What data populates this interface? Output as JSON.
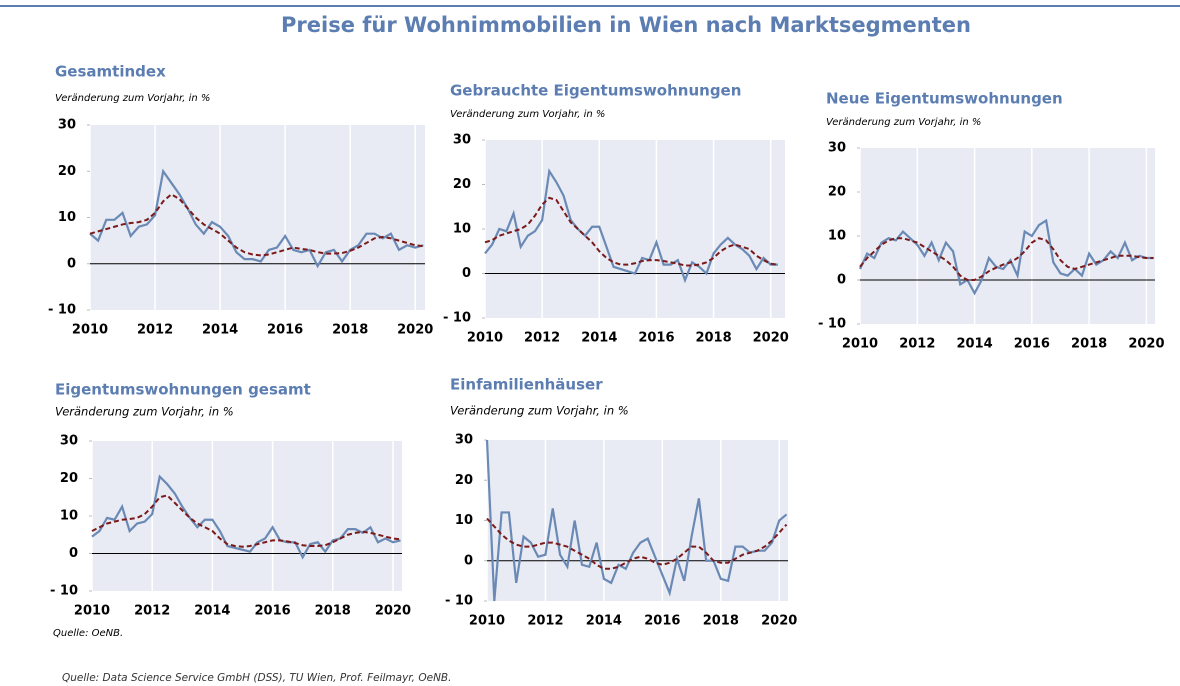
{
  "title": "Preise für Wohnimmobilien in Wien nach Marktsegmenten",
  "source": "Quelle: Data Science Service GmbH (DSS), TU Wien, Prof. Feilmayr, OeNB.",
  "chart_data": [
    {
      "type": "line",
      "title": "Gesamtindex",
      "subtitle": "Veränderung zum Vorjahr, in %",
      "x": [
        2010,
        2010.25,
        2010.5,
        2010.75,
        2011,
        2011.25,
        2011.5,
        2011.75,
        2012,
        2012.25,
        2012.5,
        2012.75,
        2013,
        2013.25,
        2013.5,
        2013.75,
        2014,
        2014.25,
        2014.5,
        2014.75,
        2015,
        2015.25,
        2015.5,
        2015.75,
        2016,
        2016.25,
        2016.5,
        2016.75,
        2017,
        2017.25,
        2017.5,
        2017.75,
        2018,
        2018.25,
        2018.5,
        2018.75,
        2019,
        2019.25,
        2019.5,
        2019.75,
        2020,
        2020.25
      ],
      "series": [
        {
          "color": "#6a8ab5",
          "style": "solid",
          "values": [
            6.5,
            5,
            9.5,
            9.5,
            11,
            6,
            8,
            8.5,
            10.5,
            20,
            17.5,
            15,
            12,
            8.5,
            6.5,
            9,
            8,
            6,
            2.5,
            1,
            1,
            0.5,
            3,
            3.5,
            6,
            3,
            2.5,
            3,
            -0.5,
            2.5,
            3,
            0.5,
            3,
            4,
            6.5,
            6.5,
            5.5,
            6.5,
            3,
            4,
            3.5,
            4
          ]
        },
        {
          "color": "#7b1a1a",
          "style": "dashed",
          "values": [
            6.5,
            7,
            7.5,
            8,
            8.5,
            8.8,
            9,
            9.5,
            11,
            13.5,
            15,
            14,
            12,
            10,
            8.5,
            7.5,
            6.5,
            5,
            3.5,
            2.5,
            2,
            1.8,
            2,
            2.5,
            3,
            3.5,
            3.2,
            3,
            2.5,
            2.2,
            2.2,
            2.3,
            2.8,
            3.5,
            4.5,
            5.5,
            5.8,
            5.5,
            5,
            4.5,
            4,
            3.8
          ]
        }
      ],
      "xlim": [
        2010,
        2020.3
      ],
      "xticks": [
        2010,
        2012,
        2014,
        2016,
        2018,
        2020
      ],
      "ylim": [
        -10,
        30
      ],
      "yticks": [
        {
          "value": -10,
          "label": "- 10"
        },
        0,
        10,
        20,
        30
      ],
      "grid": true
    },
    {
      "type": "line",
      "title": "Gebrauchte Eigentumswohnungen",
      "subtitle": "Veränderung zum Vorjahr, in %",
      "x": [
        2010,
        2010.25,
        2010.5,
        2010.75,
        2011,
        2011.25,
        2011.5,
        2011.75,
        2012,
        2012.25,
        2012.5,
        2012.75,
        2013,
        2013.25,
        2013.5,
        2013.75,
        2014,
        2014.25,
        2014.5,
        2014.75,
        2015,
        2015.25,
        2015.5,
        2015.75,
        2016,
        2016.25,
        2016.5,
        2016.75,
        2017,
        2017.25,
        2017.5,
        2017.75,
        2018,
        2018.25,
        2018.5,
        2018.75,
        2019,
        2019.25,
        2019.5,
        2019.75,
        2020,
        2020.25
      ],
      "series": [
        {
          "color": "#6a8ab5",
          "style": "solid",
          "values": [
            4.5,
            6.5,
            10,
            9.5,
            13.5,
            6,
            8.5,
            9.5,
            12,
            23,
            20.5,
            17.5,
            12,
            10,
            8.5,
            10.5,
            10.5,
            6,
            1.5,
            1,
            0.5,
            0,
            3.5,
            3,
            7,
            2,
            2,
            3,
            -1.5,
            2.5,
            1.5,
            0,
            4.5,
            6.5,
            8,
            6.5,
            5.5,
            4,
            1,
            3.5,
            2,
            2
          ]
        },
        {
          "color": "#7b1a1a",
          "style": "dashed",
          "values": [
            7,
            7.5,
            8.5,
            9,
            9.5,
            10,
            11,
            13,
            15.5,
            17,
            16.5,
            14,
            11.5,
            10,
            8.5,
            7,
            5,
            3.5,
            2.5,
            2,
            2,
            2.3,
            2.8,
            3,
            3,
            2.8,
            2.5,
            2.2,
            1.8,
            1.8,
            2,
            2.5,
            3.5,
            5,
            6,
            6.5,
            6,
            5.5,
            4,
            3,
            2.2,
            2
          ]
        }
      ],
      "xlim": [
        2010,
        2020.5
      ],
      "xticks": [
        2010,
        2012,
        2014,
        2016,
        2018,
        2020
      ],
      "ylim": [
        -10,
        30
      ],
      "yticks": [
        {
          "value": -10,
          "label": "- 10"
        },
        0,
        10,
        20,
        30
      ],
      "grid": true
    },
    {
      "type": "line",
      "title": "Neue Eigentumswohnungen",
      "subtitle": "Veränderung zum Vorjahr, in %",
      "x": [
        2010,
        2010.25,
        2010.5,
        2010.75,
        2011,
        2011.25,
        2011.5,
        2011.75,
        2012,
        2012.25,
        2012.5,
        2012.75,
        2013,
        2013.25,
        2013.5,
        2013.75,
        2014,
        2014.25,
        2014.5,
        2014.75,
        2015,
        2015.25,
        2015.5,
        2015.75,
        2016,
        2016.25,
        2016.5,
        2016.75,
        2017,
        2017.25,
        2017.5,
        2017.75,
        2018,
        2018.25,
        2018.5,
        2018.75,
        2019,
        2019.25,
        2019.5,
        2019.75,
        2020,
        2020.25
      ],
      "series": [
        {
          "color": "#6a8ab5",
          "style": "solid",
          "values": [
            2.5,
            6,
            5,
            8.5,
            9.5,
            9,
            11,
            9.5,
            8,
            5.5,
            8.5,
            4.5,
            8.5,
            6.5,
            -1,
            0,
            -3,
            0,
            5,
            3,
            2.5,
            4.5,
            1,
            11,
            10,
            12.5,
            13.5,
            4,
            1.5,
            1,
            2.5,
            1,
            6,
            3.5,
            4.5,
            6.5,
            5,
            8.5,
            4.5,
            5.5,
            5,
            5
          ]
        },
        {
          "color": "#7b1a1a",
          "style": "dashed",
          "values": [
            3,
            5,
            6.5,
            8,
            9,
            9.5,
            9.5,
            9,
            8.5,
            7.5,
            6.5,
            5.5,
            4.5,
            3,
            1,
            0,
            0,
            0.8,
            2,
            2.8,
            3.5,
            4,
            5,
            6.5,
            8.5,
            9.5,
            9,
            7,
            4.5,
            3,
            2.5,
            3,
            3.5,
            4,
            4.5,
            5,
            5.5,
            5.5,
            5.5,
            5.2,
            5,
            5
          ]
        }
      ],
      "xlim": [
        2010,
        2020.3
      ],
      "xticks": [
        2010,
        2012,
        2014,
        2016,
        2018,
        2020
      ],
      "ylim": [
        -10,
        30
      ],
      "yticks": [
        {
          "value": -10,
          "label": "- 10"
        },
        0,
        10,
        20,
        30
      ],
      "grid": true
    },
    {
      "type": "line",
      "title": "Eigentumswohnungen gesamt",
      "subtitle": "Veränderung zum Vorjahr, in %",
      "source": "Quelle: OeNB.",
      "x": [
        2010,
        2010.25,
        2010.5,
        2010.75,
        2011,
        2011.25,
        2011.5,
        2011.75,
        2012,
        2012.25,
        2012.5,
        2012.75,
        2013,
        2013.25,
        2013.5,
        2013.75,
        2014,
        2014.25,
        2014.5,
        2014.75,
        2015,
        2015.25,
        2015.5,
        2015.75,
        2016,
        2016.25,
        2016.5,
        2016.75,
        2017,
        2017.25,
        2017.5,
        2017.75,
        2018,
        2018.25,
        2018.5,
        2018.75,
        2019,
        2019.25,
        2019.5,
        2019.75,
        2020,
        2020.25
      ],
      "series": [
        {
          "color": "#6a8ab5",
          "style": "solid",
          "values": [
            4.5,
            6,
            9.5,
            9,
            12.5,
            6,
            8,
            8.5,
            10.5,
            20.5,
            18.5,
            16,
            12.5,
            9.5,
            7,
            9,
            9,
            6,
            2,
            1.5,
            1,
            0.5,
            3,
            4,
            7,
            3.5,
            3,
            3,
            -1,
            2.5,
            3,
            0.5,
            3.5,
            4,
            6.5,
            6.5,
            5.5,
            7,
            3,
            4,
            3,
            3.5
          ]
        },
        {
          "color": "#7b1a1a",
          "style": "dashed",
          "values": [
            6,
            7,
            8,
            8.5,
            9,
            9.2,
            9.5,
            10.5,
            12.5,
            15,
            15.5,
            13.5,
            11.5,
            9.5,
            8,
            7,
            6,
            4,
            2.5,
            2,
            1.8,
            2,
            2.5,
            3,
            3.5,
            3.5,
            3.2,
            2.8,
            2.2,
            2,
            2,
            2.2,
            3,
            4,
            5,
            5.5,
            5.8,
            5.5,
            5,
            4.5,
            4,
            3.8
          ]
        }
      ],
      "xlim": [
        2010,
        2020.3
      ],
      "xticks": [
        2010,
        2012,
        2014,
        2016,
        2018,
        2020
      ],
      "ylim": [
        -10,
        30
      ],
      "yticks": [
        {
          "value": -10,
          "label": "- 10"
        },
        0,
        10,
        20,
        30
      ],
      "grid": true
    },
    {
      "type": "line",
      "title": "Einfamilienhäuser",
      "subtitle": "Veränderung zum Vorjahr, in %",
      "x": [
        2010,
        2010.25,
        2010.5,
        2010.75,
        2011,
        2011.25,
        2011.5,
        2011.75,
        2012,
        2012.25,
        2012.5,
        2012.75,
        2013,
        2013.25,
        2013.5,
        2013.75,
        2014,
        2014.25,
        2014.5,
        2014.75,
        2015,
        2015.25,
        2015.5,
        2015.75,
        2016,
        2016.25,
        2016.5,
        2016.75,
        2017,
        2017.25,
        2017.5,
        2017.75,
        2018,
        2018.25,
        2018.5,
        2018.75,
        2019,
        2019.25,
        2019.5,
        2019.75,
        2020,
        2020.25
      ],
      "series": [
        {
          "color": "#6a8ab5",
          "style": "solid",
          "values": [
            30,
            -10,
            12,
            12,
            -5.5,
            6,
            4.5,
            1,
            1.5,
            13,
            1.5,
            -1.5,
            10,
            -1,
            -1.5,
            4.5,
            -4.5,
            -5.5,
            -1,
            -2,
            2,
            4.5,
            5.5,
            1,
            -3.5,
            -8,
            0.5,
            -5,
            6,
            15.5,
            0,
            0,
            -4.5,
            -5,
            3.5,
            3.5,
            2,
            2.5,
            2.5,
            4.5,
            10,
            11.5
          ]
        },
        {
          "color": "#7b1a1a",
          "style": "dashed",
          "values": [
            10.5,
            8.5,
            6.5,
            5,
            4,
            3.5,
            3.5,
            4,
            4.5,
            4.5,
            4,
            3.5,
            2.5,
            1.5,
            0.5,
            -1,
            -2,
            -2,
            -1.5,
            -0.5,
            0.5,
            1,
            0.5,
            -0.5,
            -1,
            -0.5,
            0.5,
            2,
            3.5,
            3.5,
            2,
            0,
            -0.5,
            -0.5,
            0.5,
            1.5,
            2,
            2.5,
            3.5,
            5,
            7,
            9
          ]
        }
      ],
      "xlim": [
        2010,
        2020.3
      ],
      "xticks": [
        2010,
        2012,
        2014,
        2016,
        2018,
        2020
      ],
      "ylim": [
        -10,
        30
      ],
      "yticks": [
        {
          "value": -10,
          "label": "- 10"
        },
        0,
        10,
        20,
        30
      ],
      "grid": true
    }
  ]
}
